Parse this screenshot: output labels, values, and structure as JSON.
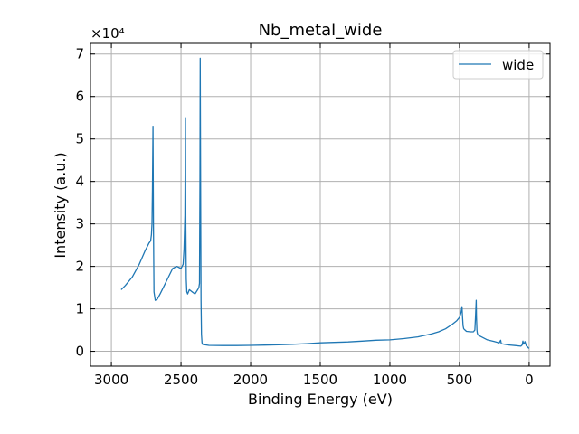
{
  "chart_data": {
    "type": "line",
    "title": "Nb_metal_wide",
    "xlabel": "Binding Energy (eV)",
    "ylabel": "Intensity (a.u.)",
    "y_multiplier_label": "×10⁴",
    "x_reversed": true,
    "xlim": [
      3150,
      -150
    ],
    "ylim": [
      -3500,
      72500
    ],
    "x_ticks": [
      3000,
      2500,
      2000,
      1500,
      1000,
      500,
      0
    ],
    "x_tick_labels": [
      "3000",
      "2500",
      "2000",
      "1500",
      "1000",
      "500",
      "0"
    ],
    "y_ticks": [
      0,
      10000,
      20000,
      30000,
      40000,
      50000,
      60000,
      70000
    ],
    "y_tick_labels": [
      "0",
      "1",
      "2",
      "3",
      "4",
      "5",
      "6",
      "7"
    ],
    "grid": true,
    "legend_position": "top-right",
    "color": "#1f77b4",
    "series": [
      {
        "name": "wide",
        "x": [
          2930,
          2900,
          2850,
          2800,
          2760,
          2730,
          2718,
          2712,
          2708,
          2705,
          2701,
          2698,
          2694,
          2685,
          2670,
          2650,
          2620,
          2590,
          2560,
          2530,
          2500,
          2485,
          2478,
          2472,
          2468,
          2465,
          2462,
          2458,
          2452,
          2440,
          2420,
          2400,
          2380,
          2372,
          2367,
          2364,
          2362,
          2359,
          2356,
          2353,
          2349,
          2344,
          2300,
          2200,
          2100,
          2000,
          1900,
          1800,
          1700,
          1600,
          1500,
          1400,
          1300,
          1200,
          1100,
          1000,
          900,
          800,
          700,
          650,
          600,
          550,
          520,
          500,
          490,
          482,
          478,
          474,
          470,
          460,
          450,
          420,
          400,
          390,
          385,
          380,
          378,
          375,
          372,
          369,
          365,
          360,
          300,
          250,
          215,
          210,
          205,
          200,
          150,
          100,
          60,
          50,
          45,
          40,
          35,
          30,
          20,
          10,
          5,
          0
        ],
        "y": [
          14500,
          15500,
          17500,
          20500,
          23500,
          25500,
          26000,
          27500,
          30000,
          38000,
          53000,
          30000,
          14000,
          12000,
          12300,
          13500,
          15500,
          17500,
          19500,
          20000,
          19500,
          20500,
          24000,
          32000,
          55000,
          30000,
          17000,
          14000,
          13500,
          14500,
          14000,
          13500,
          14500,
          15000,
          16000,
          40000,
          69000,
          35000,
          12000,
          4000,
          2000,
          1600,
          1400,
          1350,
          1350,
          1400,
          1450,
          1550,
          1650,
          1800,
          2000,
          2100,
          2200,
          2400,
          2600,
          2700,
          3000,
          3400,
          4100,
          4600,
          5300,
          6400,
          7200,
          8000,
          9000,
          10500,
          8000,
          6000,
          5300,
          5000,
          4700,
          4600,
          4600,
          5000,
          8000,
          12000,
          8000,
          5000,
          4300,
          4000,
          3800,
          3700,
          2700,
          2300,
          2000,
          2300,
          2600,
          1800,
          1500,
          1350,
          1200,
          1500,
          2400,
          1700,
          1900,
          2300,
          1300,
          1000,
          800,
          700
        ]
      }
    ]
  }
}
